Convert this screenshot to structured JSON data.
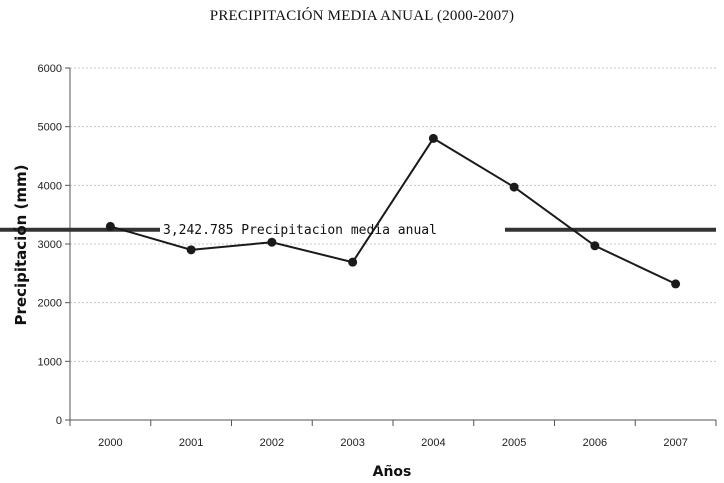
{
  "chart_data": {
    "type": "line",
    "title": "PRECIPITACIÓN MEDIA ANUAL (2000-2007)",
    "xlabel": "Años",
    "ylabel": "Precipitación (mm)",
    "categories": [
      "2000",
      "2001",
      "2002",
      "2003",
      "2004",
      "2005",
      "2006",
      "2007"
    ],
    "series": [
      {
        "values": [
          3300,
          2900,
          3030,
          2690,
          4800,
          3970,
          2970,
          2320
        ]
      }
    ],
    "ylim": [
      0,
      6000
    ],
    "yticks": [
      0,
      1000,
      2000,
      3000,
      4000,
      5000,
      6000
    ],
    "reference_line": {
      "value": 3242.785,
      "label": "3,242.785 Precipitacion media anual"
    },
    "grid": true,
    "legend": "none",
    "colors": {
      "series": "#1a1a1a",
      "reference": "#333333",
      "grid": "#c8c8c8"
    }
  },
  "footer_note": ""
}
